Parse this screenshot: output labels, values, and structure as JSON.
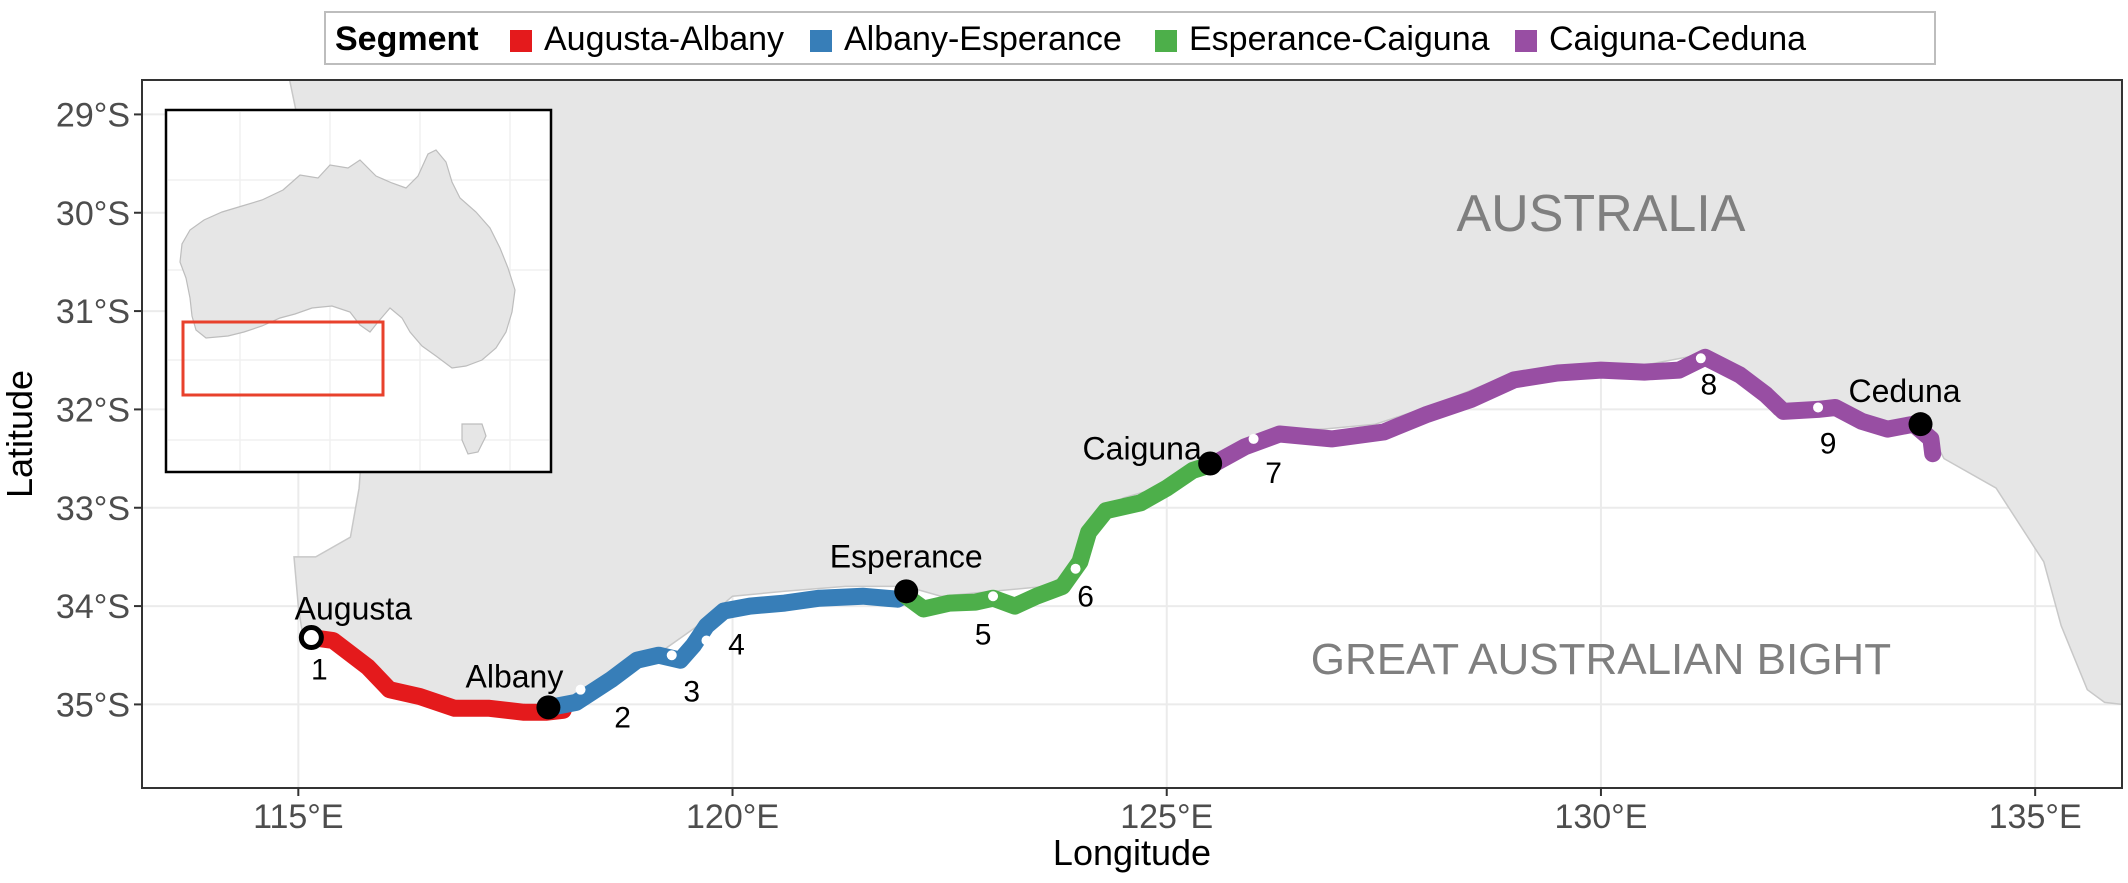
{
  "chart_data": {
    "type": "map",
    "xlabel": "Longitude",
    "ylabel": "Latitude",
    "xlim": [
      113.2,
      136.0
    ],
    "ylim": [
      -35.85,
      -28.65
    ],
    "x_ticks": [
      {
        "value": 115,
        "label": "115°E"
      },
      {
        "value": 120,
        "label": "120°E"
      },
      {
        "value": 125,
        "label": "125°E"
      },
      {
        "value": 130,
        "label": "130°E"
      },
      {
        "value": 135,
        "label": "135°E"
      }
    ],
    "y_ticks": [
      {
        "value": -29,
        "label": "29°S"
      },
      {
        "value": -30,
        "label": "30°S"
      },
      {
        "value": -31,
        "label": "31°S"
      },
      {
        "value": -32,
        "label": "32°S"
      },
      {
        "value": -33,
        "label": "33°S"
      },
      {
        "value": -34,
        "label": "34°S"
      },
      {
        "value": -35,
        "label": "35°S"
      }
    ],
    "grid": true,
    "legend": {
      "title": "Segment",
      "placement": "top",
      "items": [
        {
          "name": "Augusta-Albany",
          "color": "#e41a1c"
        },
        {
          "name": "Albany-Esperance",
          "color": "#377eb8"
        },
        {
          "name": "Esperance-Caiguna",
          "color": "#4daf4a"
        },
        {
          "name": "Caiguna-Ceduna",
          "color": "#984ea3"
        }
      ]
    },
    "region_labels": [
      {
        "text": "AUSTRALIA",
        "lon": 130.0,
        "lat": -30.0,
        "size": "large"
      },
      {
        "text": "GREAT AUSTRALIAN BIGHT",
        "lon": 130.0,
        "lat": -34.55,
        "size": "medium"
      }
    ],
    "land_color": "#e6e6e6",
    "land_outline": [
      [
        115.7,
        -28.65
      ],
      [
        136.0,
        -28.65
      ],
      [
        136.0,
        -35.0
      ],
      [
        135.8,
        -34.98
      ],
      [
        135.6,
        -34.85
      ],
      [
        135.3,
        -34.2
      ],
      [
        135.1,
        -33.55
      ],
      [
        134.55,
        -32.8
      ],
      [
        133.95,
        -32.5
      ],
      [
        133.8,
        -32.25
      ],
      [
        133.6,
        -32.12
      ],
      [
        133.2,
        -32.2
      ],
      [
        132.9,
        -32.15
      ],
      [
        132.5,
        -31.98
      ],
      [
        132.0,
        -32.05
      ],
      [
        131.7,
        -31.75
      ],
      [
        131.1,
        -31.45
      ],
      [
        130.5,
        -31.55
      ],
      [
        130.0,
        -31.55
      ],
      [
        129.3,
        -31.6
      ],
      [
        128.8,
        -31.7
      ],
      [
        128.1,
        -31.95
      ],
      [
        127.4,
        -32.15
      ],
      [
        126.8,
        -32.2
      ],
      [
        126.2,
        -32.2
      ],
      [
        125.6,
        -32.45
      ],
      [
        125.1,
        -32.75
      ],
      [
        124.5,
        -32.9
      ],
      [
        124.2,
        -33.1
      ],
      [
        124.0,
        -33.6
      ],
      [
        123.6,
        -33.8
      ],
      [
        123.0,
        -33.85
      ],
      [
        122.4,
        -33.9
      ],
      [
        122.0,
        -33.8
      ],
      [
        121.3,
        -33.8
      ],
      [
        120.6,
        -33.85
      ],
      [
        120.0,
        -33.9
      ],
      [
        119.6,
        -34.2
      ],
      [
        119.2,
        -34.45
      ],
      [
        118.7,
        -34.6
      ],
      [
        118.3,
        -34.9
      ],
      [
        117.9,
        -35.0
      ],
      [
        117.3,
        -35.0
      ],
      [
        116.7,
        -34.95
      ],
      [
        116.2,
        -34.85
      ],
      [
        115.7,
        -34.5
      ],
      [
        115.3,
        -34.35
      ],
      [
        115.05,
        -34.3
      ],
      [
        115.0,
        -34.0
      ],
      [
        114.95,
        -33.5
      ],
      [
        115.2,
        -33.5
      ],
      [
        115.6,
        -33.3
      ],
      [
        115.7,
        -32.8
      ],
      [
        115.75,
        -32.2
      ],
      [
        115.7,
        -31.5
      ],
      [
        115.3,
        -30.5
      ],
      [
        115.1,
        -29.5
      ],
      [
        114.9,
        -28.65
      ]
    ],
    "segments": [
      {
        "name": "Augusta-Albany",
        "color": "#e41a1c",
        "points": [
          [
            115.15,
            -34.32
          ],
          [
            115.4,
            -34.35
          ],
          [
            115.8,
            -34.62
          ],
          [
            116.05,
            -34.85
          ],
          [
            116.4,
            -34.92
          ],
          [
            116.8,
            -35.04
          ],
          [
            117.2,
            -35.04
          ],
          [
            117.6,
            -35.08
          ],
          [
            117.85,
            -35.08
          ],
          [
            118.05,
            -35.06
          ]
        ]
      },
      {
        "name": "Albany-Esperance",
        "color": "#377eb8",
        "points": [
          [
            117.9,
            -35.03
          ],
          [
            118.2,
            -34.98
          ],
          [
            118.6,
            -34.75
          ],
          [
            118.9,
            -34.55
          ],
          [
            119.15,
            -34.5
          ],
          [
            119.4,
            -34.55
          ],
          [
            119.55,
            -34.4
          ],
          [
            119.7,
            -34.2
          ],
          [
            119.9,
            -34.05
          ],
          [
            120.2,
            -34.0
          ],
          [
            120.6,
            -33.97
          ],
          [
            121.0,
            -33.92
          ],
          [
            121.5,
            -33.9
          ],
          [
            121.9,
            -33.93
          ],
          [
            122.0,
            -33.88
          ]
        ]
      },
      {
        "name": "Esperance-Caiguna",
        "color": "#4daf4a",
        "points": [
          [
            122.0,
            -33.9
          ],
          [
            122.2,
            -34.03
          ],
          [
            122.5,
            -33.97
          ],
          [
            122.8,
            -33.96
          ],
          [
            123.0,
            -33.92
          ],
          [
            123.25,
            -34.0
          ],
          [
            123.5,
            -33.9
          ],
          [
            123.8,
            -33.8
          ],
          [
            124.0,
            -33.55
          ],
          [
            124.1,
            -33.25
          ],
          [
            124.3,
            -33.03
          ],
          [
            124.7,
            -32.95
          ],
          [
            125.0,
            -32.8
          ],
          [
            125.3,
            -32.62
          ],
          [
            125.55,
            -32.55
          ]
        ]
      },
      {
        "name": "Caiguna-Ceduna",
        "color": "#984ea3",
        "points": [
          [
            125.55,
            -32.55
          ],
          [
            125.9,
            -32.38
          ],
          [
            126.3,
            -32.25
          ],
          [
            126.9,
            -32.3
          ],
          [
            127.5,
            -32.23
          ],
          [
            128.0,
            -32.05
          ],
          [
            128.5,
            -31.9
          ],
          [
            129.0,
            -31.7
          ],
          [
            129.5,
            -31.63
          ],
          [
            130.0,
            -31.6
          ],
          [
            130.5,
            -31.62
          ],
          [
            130.9,
            -31.6
          ],
          [
            131.2,
            -31.47
          ],
          [
            131.6,
            -31.65
          ],
          [
            131.9,
            -31.85
          ],
          [
            132.1,
            -32.02
          ],
          [
            132.5,
            -32.0
          ],
          [
            132.7,
            -31.98
          ],
          [
            133.0,
            -32.12
          ],
          [
            133.3,
            -32.2
          ],
          [
            133.6,
            -32.15
          ],
          [
            133.8,
            -32.3
          ],
          [
            133.82,
            -32.45
          ]
        ]
      }
    ],
    "towns": [
      {
        "name": "Augusta",
        "lon": 115.15,
        "lat": -34.32,
        "style": "open"
      },
      {
        "name": "Albany",
        "lon": 117.88,
        "lat": -35.03,
        "style": "filled"
      },
      {
        "name": "Esperance",
        "lon": 122.0,
        "lat": -33.85,
        "style": "filled"
      },
      {
        "name": "Caiguna",
        "lon": 125.5,
        "lat": -32.55,
        "style": "filled"
      },
      {
        "name": "Ceduna",
        "lon": 133.68,
        "lat": -32.15,
        "style": "filled"
      }
    ],
    "sites": [
      {
        "label": "1",
        "lon": 115.15,
        "lat": -34.32
      },
      {
        "label": "2",
        "lon": 118.25,
        "lat": -34.85
      },
      {
        "label": "3",
        "lon": 119.3,
        "lat": -34.5
      },
      {
        "label": "4",
        "lon": 119.7,
        "lat": -34.35
      },
      {
        "label": "5",
        "lon": 123.0,
        "lat": -33.9
      },
      {
        "label": "6",
        "lon": 123.95,
        "lat": -33.62
      },
      {
        "label": "7",
        "lon": 126.0,
        "lat": -32.3
      },
      {
        "label": "8",
        "lon": 131.15,
        "lat": -31.48
      },
      {
        "label": "9",
        "lon": 132.5,
        "lat": -31.98
      }
    ],
    "inset": {
      "description_shape": "Australia",
      "land_color": "#e6e6e6",
      "highlight_color": "#e8412c",
      "highlight_box_lon": [
        113.2,
        136.0
      ],
      "highlight_box_lat": [
        -35.85,
        -28.65
      ]
    }
  }
}
